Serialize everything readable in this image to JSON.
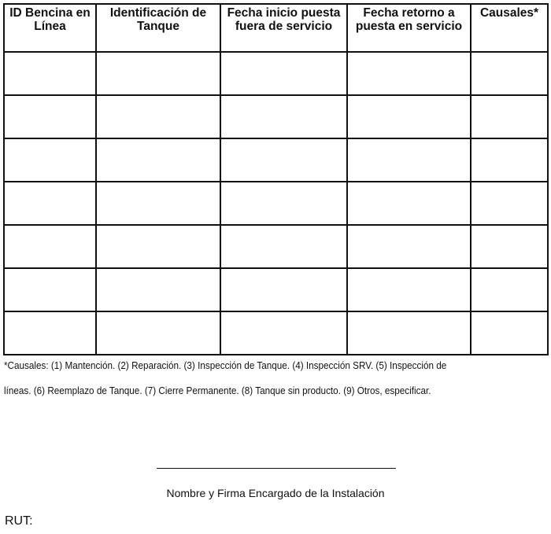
{
  "table": {
    "headers": [
      "ID Bencina en Línea",
      "Identificación de Tanque",
      "Fecha inicio puesta fuera de servicio",
      "Fecha retorno a puesta en servicio",
      "Causales*"
    ],
    "empty_rows": 7
  },
  "footnote": {
    "line1": "*Causales: (1) Mantención. (2) Reparación. (3) Inspección de Tanque. (4) Inspección SRV. (5) Inspección de",
    "line2": "líneas. (6) Reemplazo de Tanque. (7) Cierre Permanente. (8) Tanque sin producto. (9) Otros, especificar."
  },
  "signature": {
    "label": "Nombre y Firma Encargado de la Instalación"
  },
  "rut": {
    "label": "RUT:"
  }
}
